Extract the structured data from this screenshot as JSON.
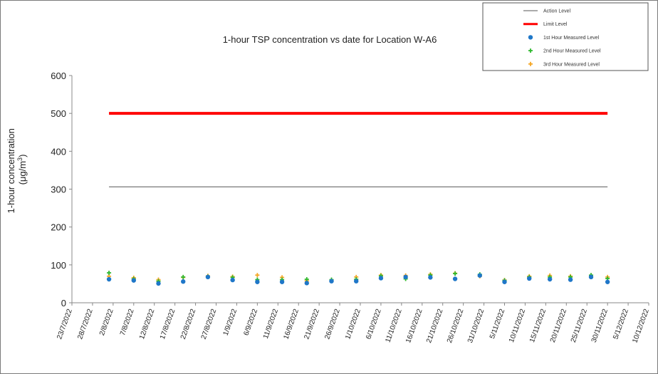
{
  "chart_data": {
    "type": "scatter",
    "title": "1-hour TSP concentration vs date for Location  W-A6",
    "ylabel_line1": "1-hour concentration",
    "ylabel_line2": "(μg/m",
    "ylabel_sup": "3",
    "ylabel_end": ")",
    "ylim": [
      0,
      600
    ],
    "y_ticks": [
      "0",
      "100",
      "200",
      "300",
      "400",
      "500",
      "600"
    ],
    "x_tick_labels": [
      "23/7/2022",
      "28/7/2022",
      "2/8/2022",
      "7/8/2022",
      "12/8/2022",
      "17/8/2022",
      "22/8/2022",
      "27/8/2022",
      "1/9/2022",
      "6/9/2022",
      "11/9/2022",
      "16/9/2022",
      "21/9/2022",
      "26/9/2022",
      "1/10/2022",
      "6/10/2022",
      "11/10/2022",
      "16/10/2022",
      "21/10/2022",
      "26/10/2022",
      "31/10/2022",
      "5/11/2022",
      "10/11/2022",
      "15/11/2022",
      "20/11/2022",
      "25/11/2022",
      "30/11/2022",
      "5/12/2022",
      "10/12/2022"
    ],
    "xlim": [
      "2022-07-23",
      "2022-12-10"
    ],
    "legend": [
      {
        "label": "Action Level",
        "kind": "line",
        "color": "#555555"
      },
      {
        "label": "Limit Level",
        "kind": "thickline",
        "color": "#ff0000"
      },
      {
        "label": "1st Hour Measured Level",
        "kind": "dot",
        "color": "#1f77c8"
      },
      {
        "label": "2nd Hour Measured Level",
        "kind": "plus",
        "color": "#2eb82e"
      },
      {
        "label": "3rd Hour Measured Level",
        "kind": "plus",
        "color": "#f5a623"
      }
    ],
    "action_level": {
      "value": 306,
      "x_start": "2022-08-01",
      "x_end": "2022-11-30"
    },
    "limit_level": {
      "value": 500,
      "x_start": "2022-08-01",
      "x_end": "2022-11-30"
    },
    "series": [
      {
        "name": "1st Hour Measured Level",
        "color": "#1f77c8",
        "marker": "dot",
        "x": [
          "2022-08-01",
          "2022-08-07",
          "2022-08-13",
          "2022-08-19",
          "2022-08-25",
          "2022-08-31",
          "2022-09-06",
          "2022-09-12",
          "2022-09-18",
          "2022-09-24",
          "2022-09-30",
          "2022-10-06",
          "2022-10-12",
          "2022-10-18",
          "2022-10-24",
          "2022-10-30",
          "2022-11-05",
          "2022-11-11",
          "2022-11-16",
          "2022-11-21",
          "2022-11-26",
          "2022-11-30"
        ],
        "values": [
          62,
          59,
          51,
          56,
          68,
          60,
          55,
          55,
          52,
          57,
          57,
          65,
          68,
          67,
          63,
          72,
          55,
          64,
          62,
          61,
          68,
          55
        ]
      },
      {
        "name": "2nd Hour Measured Level",
        "color": "#2eb82e",
        "marker": "plus",
        "x": [
          "2022-08-01",
          "2022-08-07",
          "2022-08-13",
          "2022-08-19",
          "2022-08-25",
          "2022-08-31",
          "2022-09-06",
          "2022-09-12",
          "2022-09-18",
          "2022-09-24",
          "2022-09-30",
          "2022-10-06",
          "2022-10-12",
          "2022-10-18",
          "2022-10-24",
          "2022-10-30",
          "2022-11-05",
          "2022-11-11",
          "2022-11-16",
          "2022-11-21",
          "2022-11-26",
          "2022-11-30"
        ],
        "values": [
          79,
          63,
          57,
          68,
          69,
          67,
          61,
          61,
          62,
          61,
          62,
          71,
          63,
          73,
          77,
          75,
          59,
          68,
          68,
          68,
          73,
          64
        ]
      },
      {
        "name": "3rd Hour Measured Level",
        "color": "#f5a623",
        "marker": "plus",
        "x": [
          "2022-08-01",
          "2022-08-07",
          "2022-08-13",
          "2022-08-19",
          "2022-08-25",
          "2022-08-31",
          "2022-09-06",
          "2022-09-12",
          "2022-09-18",
          "2022-09-24",
          "2022-09-30",
          "2022-10-06",
          "2022-10-12",
          "2022-10-18",
          "2022-10-24",
          "2022-10-30",
          "2022-11-05",
          "2022-11-11",
          "2022-11-16",
          "2022-11-21",
          "2022-11-26",
          "2022-11-30"
        ],
        "values": [
          70,
          66,
          61,
          67,
          71,
          69,
          73,
          67,
          58,
          59,
          68,
          73,
          72,
          75,
          78,
          70,
          60,
          70,
          72,
          70,
          72,
          68
        ]
      }
    ]
  }
}
